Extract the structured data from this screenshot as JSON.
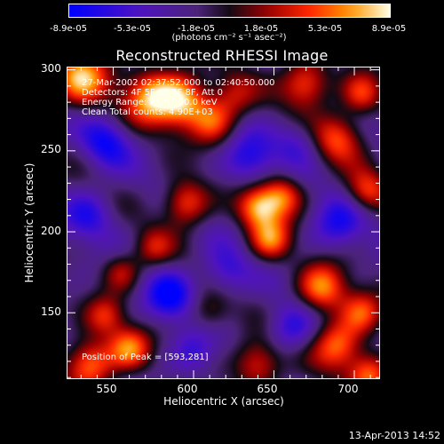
{
  "colorbar": {
    "ticks": [
      "-8.9e-05",
      "-5.3e-05",
      "-1.8e-05",
      "1.8e-05",
      "5.3e-05",
      "8.9e-05"
    ],
    "tick_values": [
      -8.9e-05,
      -5.3e-05,
      -1.8e-05,
      1.8e-05,
      5.3e-05,
      8.9e-05
    ],
    "range": [
      -8.9e-05,
      8.9e-05
    ],
    "units": "(photons cm⁻² s⁻¹ asec⁻²)",
    "colors": [
      "#0000ff",
      "#6a0dad",
      "#4a2570",
      "#000000",
      "#ff0000",
      "#ff8800",
      "#ffffff"
    ]
  },
  "annotations": {
    "time": "27-Mar-2002 02:37:52.000 to 02:40:50.000",
    "detectors": "Detectors: 4F 5F 6F 7F 8F, Att 0",
    "energy": "Energy Range: 25.0 - 50.0 keV",
    "clean": "Clean    Total counts: 4.90E+03",
    "peak": "Position of Peak = [593,281]"
  },
  "footer": "13-Apr-2013 14:52",
  "chart_data": {
    "type": "heatmap",
    "title": "Reconstructed RHESSI Image",
    "xlabel": "Heliocentric X (arcsec)",
    "ylabel": "Heliocentric Y (arcsec)",
    "xlim": [
      521,
      716
    ],
    "ylim": [
      109,
      302
    ],
    "xticks": [
      550,
      600,
      650,
      700
    ],
    "yticks": [
      150,
      200,
      250,
      300
    ],
    "peak": [
      593,
      281
    ],
    "blobs": [
      {
        "x": 530,
        "y": 295,
        "w": 1.0,
        "r": 16
      },
      {
        "x": 573,
        "y": 283,
        "w": 0.95,
        "r": 16
      },
      {
        "x": 593,
        "y": 281,
        "w": 1.0,
        "r": 15
      },
      {
        "x": 612,
        "y": 268,
        "w": 0.7,
        "r": 13
      },
      {
        "x": 625,
        "y": 285,
        "w": 0.5,
        "r": 13
      },
      {
        "x": 670,
        "y": 292,
        "w": 0.9,
        "r": 14
      },
      {
        "x": 690,
        "y": 258,
        "w": 0.75,
        "r": 14
      },
      {
        "x": 705,
        "y": 285,
        "w": 0.7,
        "r": 12
      },
      {
        "x": 595,
        "y": 218,
        "w": 0.85,
        "r": 13
      },
      {
        "x": 640,
        "y": 215,
        "w": 0.95,
        "r": 12
      },
      {
        "x": 655,
        "y": 222,
        "w": 0.8,
        "r": 12
      },
      {
        "x": 648,
        "y": 195,
        "w": 0.85,
        "r": 12
      },
      {
        "x": 708,
        "y": 225,
        "w": 0.7,
        "r": 12
      },
      {
        "x": 555,
        "y": 175,
        "w": 0.55,
        "r": 11
      },
      {
        "x": 575,
        "y": 190,
        "w": 0.5,
        "r": 11
      },
      {
        "x": 680,
        "y": 165,
        "w": 0.95,
        "r": 14
      },
      {
        "x": 705,
        "y": 150,
        "w": 0.7,
        "r": 12
      },
      {
        "x": 545,
        "y": 148,
        "w": 0.6,
        "r": 11
      },
      {
        "x": 535,
        "y": 118,
        "w": 1.0,
        "r": 14
      },
      {
        "x": 560,
        "y": 128,
        "w": 0.85,
        "r": 12
      },
      {
        "x": 640,
        "y": 118,
        "w": 0.8,
        "r": 14
      },
      {
        "x": 690,
        "y": 130,
        "w": 0.9,
        "r": 14
      },
      {
        "x": 710,
        "y": 112,
        "w": 0.85,
        "r": 12
      },
      {
        "x": 610,
        "y": 150,
        "w": 0.45,
        "r": 12
      },
      {
        "x": 545,
        "y": 255,
        "w": -0.6,
        "r": 14
      },
      {
        "x": 635,
        "y": 245,
        "w": -0.55,
        "r": 15
      },
      {
        "x": 690,
        "y": 205,
        "w": -0.55,
        "r": 15
      },
      {
        "x": 585,
        "y": 160,
        "w": -0.7,
        "r": 14
      },
      {
        "x": 620,
        "y": 175,
        "w": -0.5,
        "r": 14
      },
      {
        "x": 600,
        "y": 125,
        "w": -0.45,
        "r": 13
      },
      {
        "x": 660,
        "y": 140,
        "w": -0.55,
        "r": 14
      },
      {
        "x": 535,
        "y": 210,
        "w": -0.5,
        "r": 14
      },
      {
        "x": 665,
        "y": 255,
        "w": -0.4,
        "r": 13
      }
    ]
  }
}
